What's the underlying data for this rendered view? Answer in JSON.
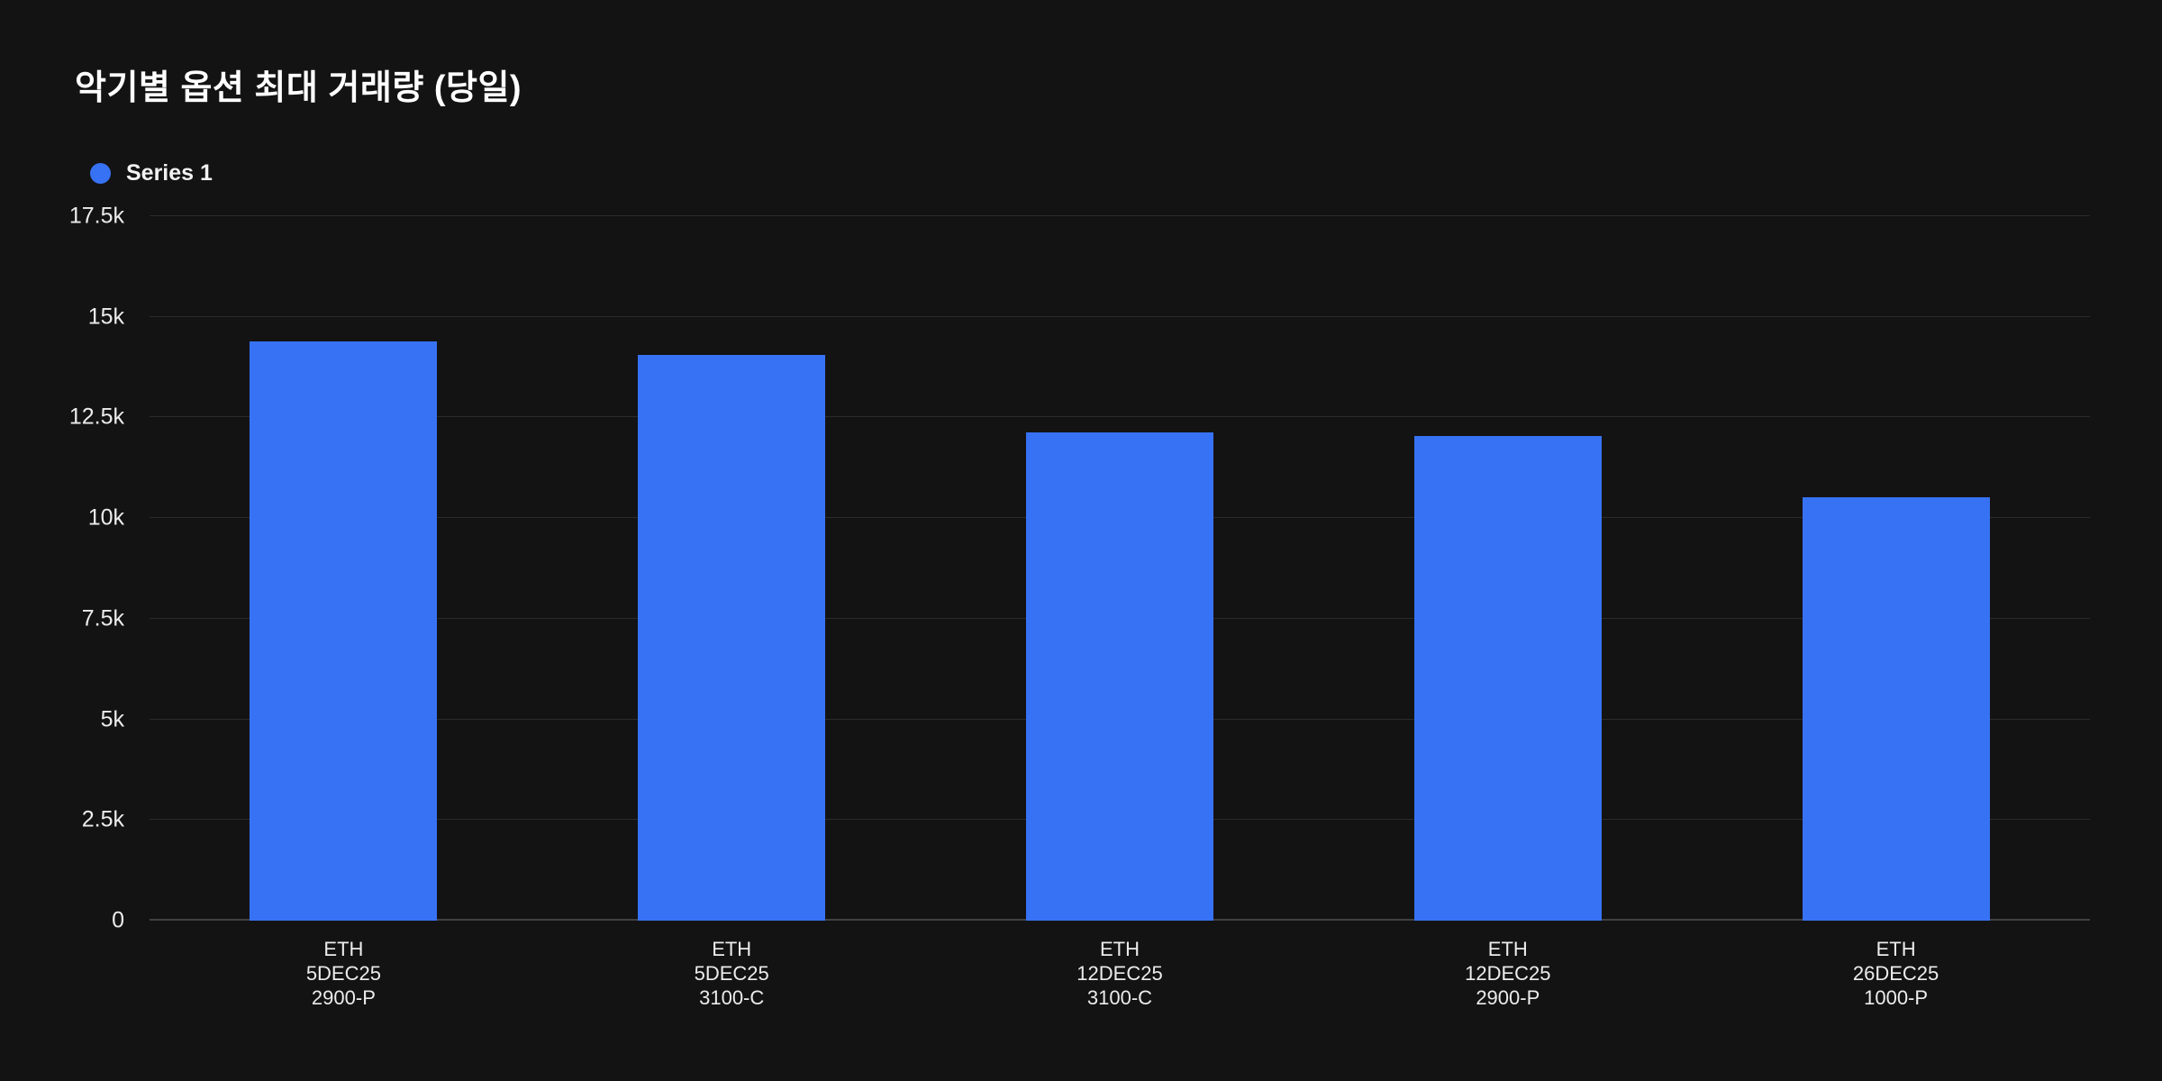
{
  "page": {
    "background": "#131314"
  },
  "header": {
    "title": "악기별 옵션 최대 거래량 (당일)"
  },
  "legend": {
    "items": [
      {
        "label": "Series 1",
        "color": "#3772f4",
        "marker": "circle"
      }
    ]
  },
  "chart_data": {
    "type": "bar",
    "title": "악기별 옵션 최대 거래량 (당일)",
    "series": [
      {
        "name": "Series 1",
        "values": [
          14380,
          14060,
          12130,
          12050,
          10520
        ]
      }
    ],
    "categories": [
      [
        "ETH",
        "5DEC25",
        "2900-P"
      ],
      [
        "ETH",
        "5DEC25",
        "3100-C"
      ],
      [
        "ETH",
        "12DEC25",
        "3100-C"
      ],
      [
        "ETH",
        "12DEC25",
        "2900-P"
      ],
      [
        "ETH",
        "26DEC25",
        "1000-P"
      ]
    ],
    "yticks": [
      0,
      2500,
      5000,
      7500,
      10000,
      12500,
      15000,
      17500
    ],
    "ytick_labels": [
      "0",
      "2.5k",
      "5k",
      "7.5k",
      "10k",
      "12.5k",
      "15k",
      "17.5k"
    ],
    "ylim": [
      0,
      17500
    ],
    "xlabel": "",
    "ylabel": "",
    "bar_color": "#3772f4",
    "background_color": "#131314",
    "grid": "horizontal-only",
    "legend_position": "top-left",
    "bar_width_fraction": 0.483
  }
}
